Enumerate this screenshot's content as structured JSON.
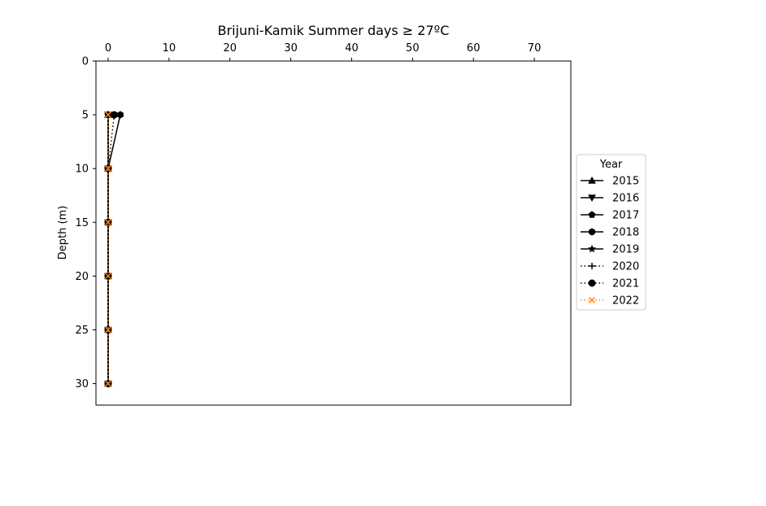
{
  "chart_data": {
    "type": "line",
    "title": "Brijuni-Kamik Summer days ≥ 27ºC",
    "xlabel": "",
    "ylabel": "Depth (m)",
    "x_axis_position": "top",
    "y_inverted": true,
    "xlim": [
      -2,
      76
    ],
    "ylim": [
      32,
      0
    ],
    "xticks": [
      0,
      10,
      20,
      30,
      40,
      50,
      60,
      70
    ],
    "yticks": [
      0,
      5,
      10,
      15,
      20,
      25,
      30
    ],
    "depths": [
      5,
      10,
      15,
      20,
      25,
      30
    ],
    "grid": false,
    "legend": {
      "title": "Year",
      "placement": "outside right"
    },
    "series": [
      {
        "name": "2015",
        "values": [
          0,
          0,
          0,
          0,
          0,
          0
        ],
        "color": "#000000",
        "linestyle": "solid",
        "marker": "triangle-up"
      },
      {
        "name": "2016",
        "values": [
          0,
          0,
          0,
          0,
          0,
          0
        ],
        "color": "#000000",
        "linestyle": "solid",
        "marker": "triangle-down"
      },
      {
        "name": "2017",
        "values": [
          0,
          0,
          0,
          0,
          0,
          0
        ],
        "color": "#000000",
        "linestyle": "solid",
        "marker": "pentagon"
      },
      {
        "name": "2018",
        "values": [
          2,
          0,
          0,
          0,
          0,
          0
        ],
        "color": "#000000",
        "linestyle": "solid",
        "marker": "hexagon"
      },
      {
        "name": "2019",
        "values": [
          0,
          0,
          0,
          0,
          0,
          0
        ],
        "color": "#000000",
        "linestyle": "solid",
        "marker": "star"
      },
      {
        "name": "2020",
        "values": [
          0,
          0,
          0,
          0,
          0,
          0
        ],
        "color": "#000000",
        "linestyle": "dotted",
        "marker": "plus"
      },
      {
        "name": "2021",
        "values": [
          1,
          0,
          0,
          0,
          0,
          0
        ],
        "color": "#000000",
        "linestyle": "dotted",
        "marker": "circle"
      },
      {
        "name": "2022",
        "values": [
          0,
          0,
          0,
          0,
          0,
          0
        ],
        "color": "#ff7f0e",
        "linestyle": "dotted",
        "marker": "x"
      }
    ]
  }
}
